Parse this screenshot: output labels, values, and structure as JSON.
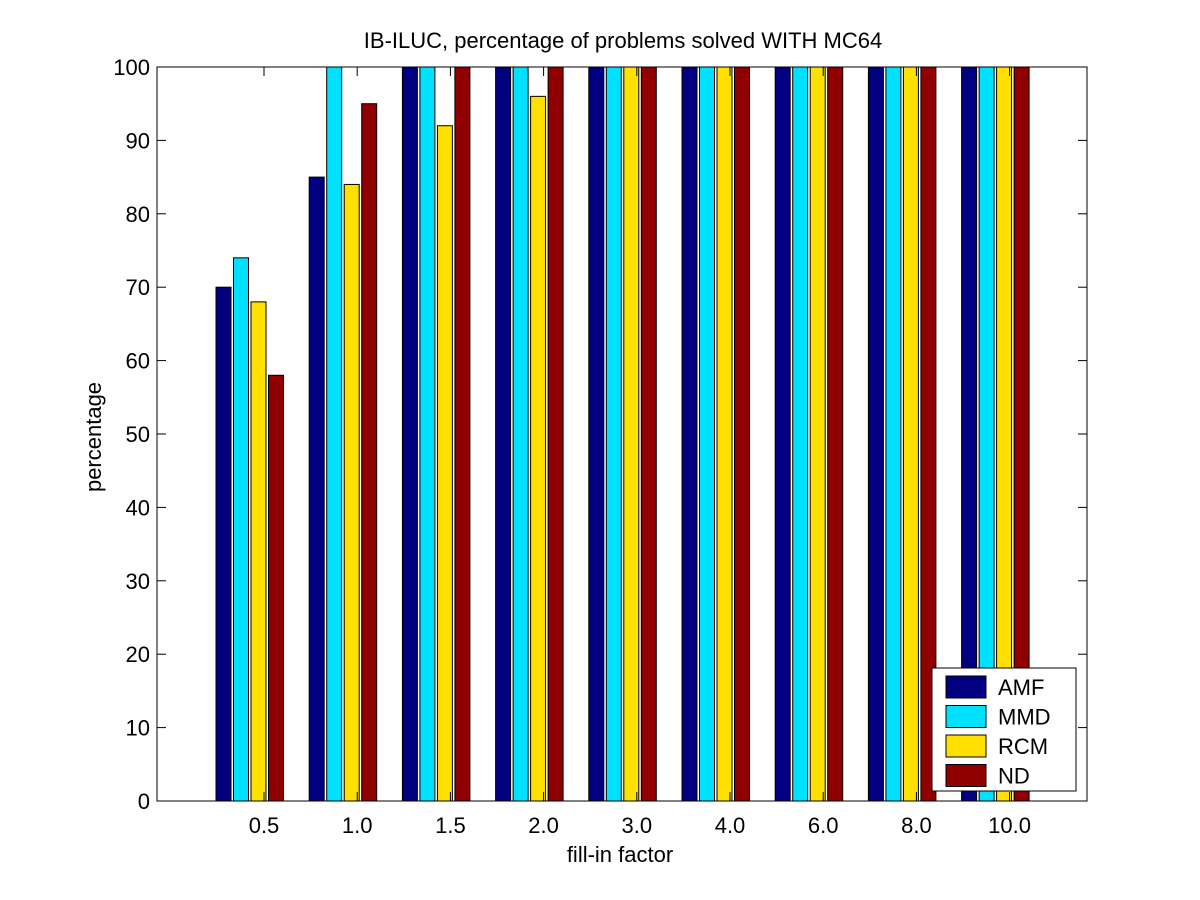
{
  "chart_data": {
    "type": "bar",
    "title": "IB-ILUC, percentage of problems solved WITH MC64",
    "xlabel": "fill-in factor",
    "ylabel": "percentage",
    "ylim": [
      0,
      100
    ],
    "yticks": [
      0,
      10,
      20,
      30,
      40,
      50,
      60,
      70,
      80,
      90,
      100
    ],
    "categories": [
      "0.5",
      "1.0",
      "1.5",
      "2.0",
      "3.0",
      "4.0",
      "6.0",
      "8.0",
      "10.0"
    ],
    "series": [
      {
        "name": "AMF",
        "color": "#000080",
        "values": [
          70,
          85,
          100,
          100,
          100,
          100,
          100,
          100,
          100
        ]
      },
      {
        "name": "MMD",
        "color": "#00e0ff",
        "values": [
          74,
          100,
          100,
          100,
          100,
          100,
          100,
          100,
          100
        ]
      },
      {
        "name": "RCM",
        "color": "#ffe000",
        "values": [
          68,
          84,
          92,
          96,
          100,
          100,
          100,
          100,
          100
        ]
      },
      {
        "name": "ND",
        "color": "#900000",
        "values": [
          58,
          95,
          100,
          100,
          100,
          100,
          100,
          100,
          100
        ]
      }
    ],
    "grid": false,
    "legend_position": "bottom-right"
  }
}
